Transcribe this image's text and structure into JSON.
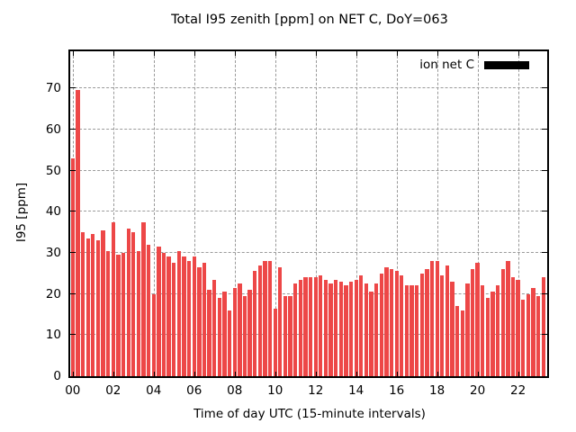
{
  "chart_data": {
    "type": "bar",
    "title": "Total I95 zenith [ppm] on NET C, DoY=063",
    "xlabel": "Time of day UTC (15-minute intervals)",
    "ylabel": "I95 [ppm]",
    "legend": {
      "label": "ion net C",
      "swatch_color": "#000000"
    },
    "bar_color": "#ed4747",
    "grid": true,
    "grid_color": "#9a9a9a",
    "x_start": "00:00",
    "x_interval_minutes": 15,
    "x_tick_labels": [
      "00",
      "02",
      "04",
      "06",
      "08",
      "10",
      "12",
      "14",
      "16",
      "18",
      "20",
      "22"
    ],
    "y_ticks": [
      0,
      10,
      20,
      30,
      40,
      50,
      60,
      70
    ],
    "ylim": [
      0,
      79
    ],
    "legend_position": "top-right",
    "values": [
      53,
      69.5,
      35,
      33.5,
      34.5,
      33,
      35.5,
      30.5,
      37.5,
      29.5,
      30,
      36,
      35,
      30.5,
      37.5,
      32,
      20,
      31.5,
      30,
      29,
      27.5,
      30.5,
      29,
      28,
      29,
      26.5,
      27.5,
      21,
      23.5,
      19,
      20.5,
      16,
      21.5,
      22.5,
      19.5,
      21,
      25.5,
      27,
      28,
      28,
      16.5,
      26.5,
      19.5,
      19.5,
      22.5,
      23.5,
      24,
      24,
      24,
      24.5,
      23.5,
      22.5,
      23.5,
      23,
      22,
      23,
      23.5,
      24.5,
      22.5,
      20.5,
      22.5,
      25,
      26.5,
      26,
      25.5,
      24.5,
      22,
      22,
      22,
      25,
      26,
      28,
      28,
      24.5,
      27,
      23,
      17,
      16,
      22.5,
      26,
      27.5,
      22,
      19,
      20.5,
      22,
      26,
      28,
      24,
      23.5,
      18.5,
      20,
      21.5,
      19.5,
      24
    ]
  }
}
